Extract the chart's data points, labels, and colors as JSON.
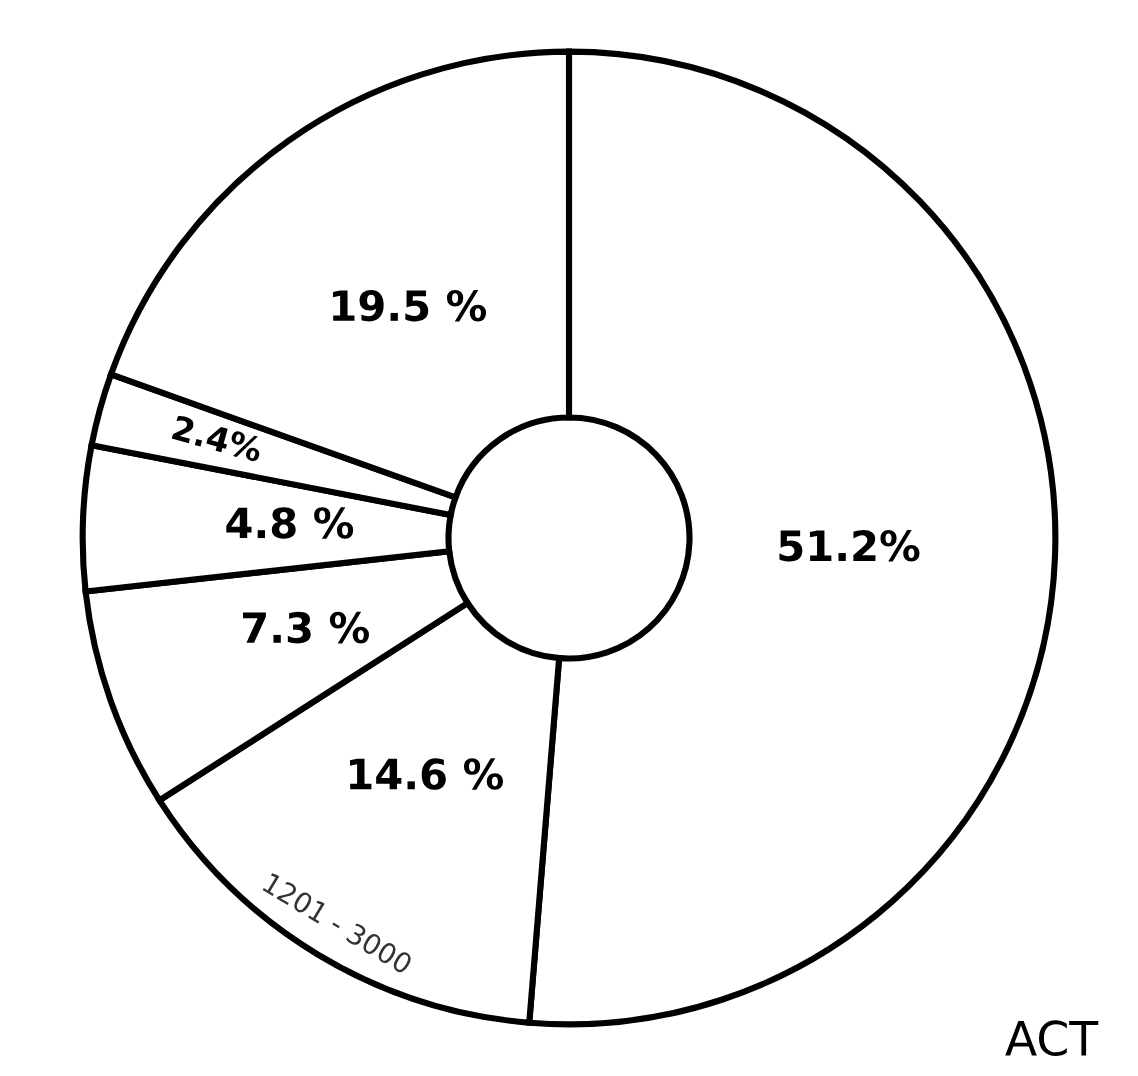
{
  "chart_data": {
    "type": "donut",
    "categories": [
      null,
      "1201 - 3000",
      null,
      null,
      null,
      null
    ],
    "values": [
      51.2,
      14.6,
      7.3,
      4.8,
      2.4,
      19.5
    ],
    "colors": [
      "#ffffff",
      "#ffffff",
      "#ffffff",
      "#ffffff",
      "#ffffff",
      "#ffffff"
    ],
    "value_labels": [
      "51.2%",
      "14.6 %",
      "7.3 %",
      "4.8 %",
      "2.4%",
      "19.5 %"
    ],
    "annotations": [
      "ACT"
    ]
  }
}
